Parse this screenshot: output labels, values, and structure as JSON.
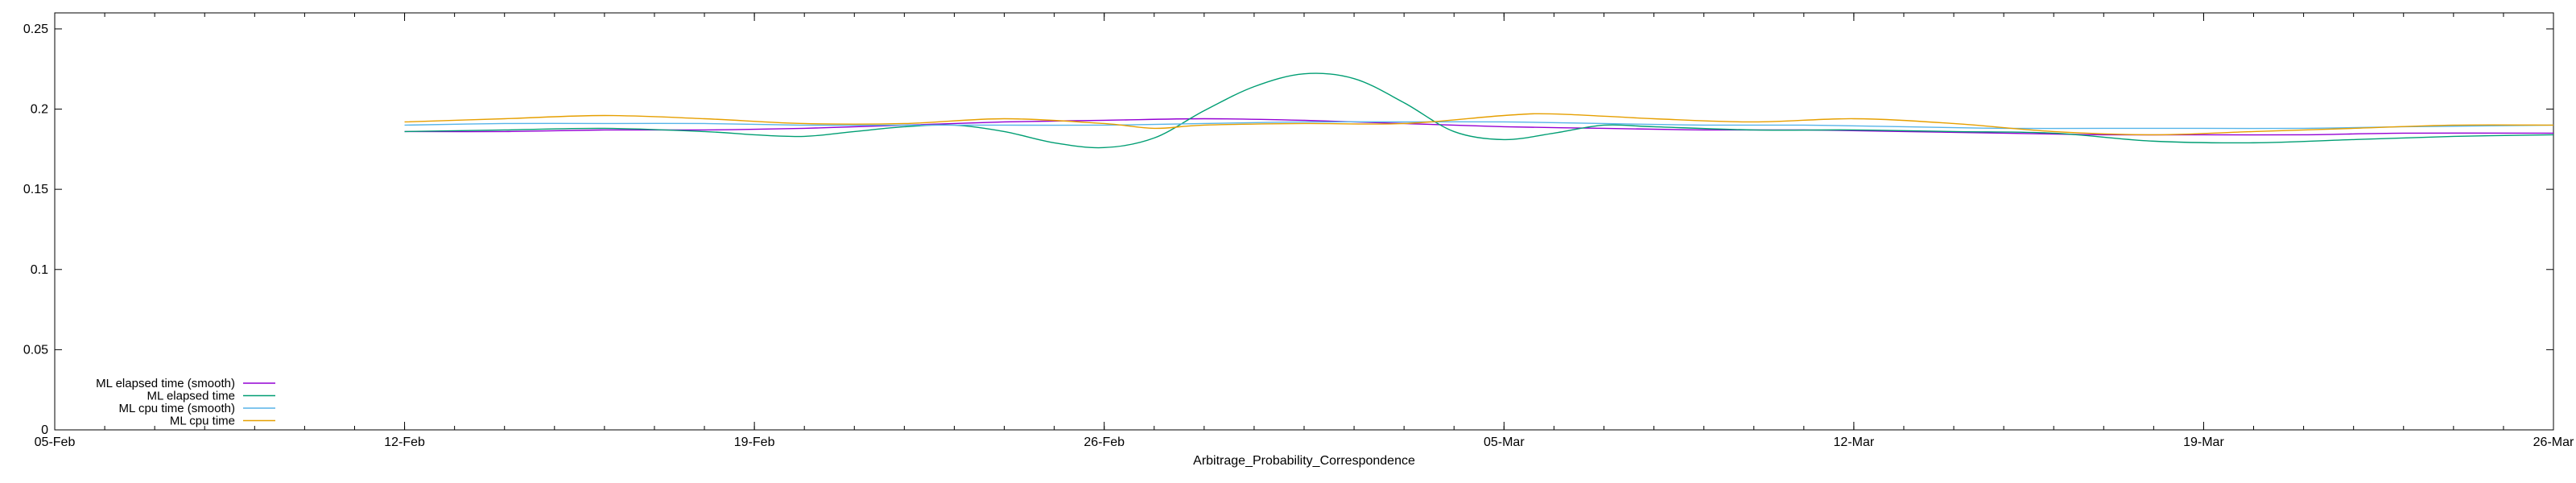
{
  "chart_data": {
    "type": "line",
    "xlabel": "Arbitrage_Probability_Correspondence",
    "ylabel": "",
    "title": "",
    "xlim": [
      "2024-02-05",
      "2024-03-26"
    ],
    "ylim": [
      0,
      0.26
    ],
    "x_ticks": [
      {
        "date": "2024-02-05",
        "label": "05-Feb"
      },
      {
        "date": "2024-02-12",
        "label": "12-Feb"
      },
      {
        "date": "2024-02-19",
        "label": "19-Feb"
      },
      {
        "date": "2024-02-26",
        "label": "26-Feb"
      },
      {
        "date": "2024-03-05",
        "label": "05-Mar"
      },
      {
        "date": "2024-03-12",
        "label": "12-Mar"
      },
      {
        "date": "2024-03-19",
        "label": "19-Mar"
      },
      {
        "date": "2024-03-26",
        "label": "26-Mar"
      }
    ],
    "y_ticks": [
      {
        "value": 0,
        "label": "0"
      },
      {
        "value": 0.05,
        "label": "0.05"
      },
      {
        "value": 0.1,
        "label": "0.1"
      },
      {
        "value": 0.15,
        "label": "0.15"
      },
      {
        "value": 0.2,
        "label": "0.2"
      },
      {
        "value": 0.25,
        "label": "0.25"
      }
    ],
    "grid": false,
    "legend_position": "bottom-left",
    "series": [
      {
        "name": "ML elapsed time (smooth)",
        "color": "#9400d3",
        "points": [
          [
            "2024-02-12",
            0.186
          ],
          [
            "2024-02-14",
            0.186
          ],
          [
            "2024-02-16",
            0.187
          ],
          [
            "2024-02-18",
            0.187
          ],
          [
            "2024-02-20",
            0.188
          ],
          [
            "2024-02-22",
            0.19
          ],
          [
            "2024-02-24",
            0.192
          ],
          [
            "2024-02-26",
            0.193
          ],
          [
            "2024-02-28",
            0.194
          ],
          [
            "2024-03-01",
            0.193
          ],
          [
            "2024-03-03",
            0.191
          ],
          [
            "2024-03-05",
            0.189
          ],
          [
            "2024-03-07",
            0.188
          ],
          [
            "2024-03-09",
            0.187
          ],
          [
            "2024-03-11",
            0.187
          ],
          [
            "2024-03-13",
            0.186
          ],
          [
            "2024-03-15",
            0.185
          ],
          [
            "2024-03-17",
            0.184
          ],
          [
            "2024-03-19",
            0.184
          ],
          [
            "2024-03-21",
            0.184
          ],
          [
            "2024-03-23",
            0.185
          ],
          [
            "2024-03-26",
            0.185
          ]
        ]
      },
      {
        "name": "ML elapsed time",
        "color": "#009e73",
        "points": [
          [
            "2024-02-12",
            0.186
          ],
          [
            "2024-02-14",
            0.187
          ],
          [
            "2024-02-16",
            0.188
          ],
          [
            "2024-02-18",
            0.186
          ],
          [
            "2024-02-19",
            0.184
          ],
          [
            "2024-02-20",
            0.183
          ],
          [
            "2024-02-21",
            0.186
          ],
          [
            "2024-02-22",
            0.189
          ],
          [
            "2024-02-23",
            0.19
          ],
          [
            "2024-02-24",
            0.186
          ],
          [
            "2024-02-25",
            0.179
          ],
          [
            "2024-02-26",
            0.176
          ],
          [
            "2024-02-27",
            0.182
          ],
          [
            "2024-02-28",
            0.199
          ],
          [
            "2024-02-29",
            0.214
          ],
          [
            "2024-03-01",
            0.222
          ],
          [
            "2024-03-02",
            0.219
          ],
          [
            "2024-03-03",
            0.204
          ],
          [
            "2024-03-04",
            0.186
          ],
          [
            "2024-03-05",
            0.181
          ],
          [
            "2024-03-06",
            0.185
          ],
          [
            "2024-03-07",
            0.19
          ],
          [
            "2024-03-08",
            0.189
          ],
          [
            "2024-03-10",
            0.187
          ],
          [
            "2024-03-12",
            0.187
          ],
          [
            "2024-03-14",
            0.186
          ],
          [
            "2024-03-16",
            0.185
          ],
          [
            "2024-03-18",
            0.18
          ],
          [
            "2024-03-20",
            0.179
          ],
          [
            "2024-03-22",
            0.181
          ],
          [
            "2024-03-24",
            0.183
          ],
          [
            "2024-03-26",
            0.184
          ]
        ]
      },
      {
        "name": "ML cpu time (smooth)",
        "color": "#56b4e9",
        "points": [
          [
            "2024-02-12",
            0.19
          ],
          [
            "2024-02-14",
            0.191
          ],
          [
            "2024-02-16",
            0.191
          ],
          [
            "2024-02-18",
            0.191
          ],
          [
            "2024-02-20",
            0.19
          ],
          [
            "2024-02-22",
            0.19
          ],
          [
            "2024-02-24",
            0.19
          ],
          [
            "2024-02-26",
            0.19
          ],
          [
            "2024-02-28",
            0.191
          ],
          [
            "2024-03-01",
            0.192
          ],
          [
            "2024-03-03",
            0.192
          ],
          [
            "2024-03-05",
            0.192
          ],
          [
            "2024-03-07",
            0.191
          ],
          [
            "2024-03-09",
            0.19
          ],
          [
            "2024-03-11",
            0.19
          ],
          [
            "2024-03-13",
            0.189
          ],
          [
            "2024-03-15",
            0.188
          ],
          [
            "2024-03-17",
            0.188
          ],
          [
            "2024-03-19",
            0.188
          ],
          [
            "2024-03-21",
            0.188
          ],
          [
            "2024-03-23",
            0.189
          ],
          [
            "2024-03-26",
            0.19
          ]
        ]
      },
      {
        "name": "ML cpu time",
        "color": "#e69f00",
        "points": [
          [
            "2024-02-12",
            0.192
          ],
          [
            "2024-02-14",
            0.194
          ],
          [
            "2024-02-16",
            0.196
          ],
          [
            "2024-02-18",
            0.194
          ],
          [
            "2024-02-20",
            0.191
          ],
          [
            "2024-02-22",
            0.191
          ],
          [
            "2024-02-24",
            0.194
          ],
          [
            "2024-02-26",
            0.191
          ],
          [
            "2024-02-27",
            0.188
          ],
          [
            "2024-02-28",
            0.19
          ],
          [
            "2024-03-01",
            0.191
          ],
          [
            "2024-03-03",
            0.191
          ],
          [
            "2024-03-05",
            0.196
          ],
          [
            "2024-03-06",
            0.197
          ],
          [
            "2024-03-08",
            0.194
          ],
          [
            "2024-03-10",
            0.192
          ],
          [
            "2024-03-12",
            0.194
          ],
          [
            "2024-03-14",
            0.191
          ],
          [
            "2024-03-16",
            0.186
          ],
          [
            "2024-03-18",
            0.184
          ],
          [
            "2024-03-20",
            0.186
          ],
          [
            "2024-03-22",
            0.188
          ],
          [
            "2024-03-24",
            0.19
          ],
          [
            "2024-03-26",
            0.19
          ]
        ]
      }
    ]
  }
}
